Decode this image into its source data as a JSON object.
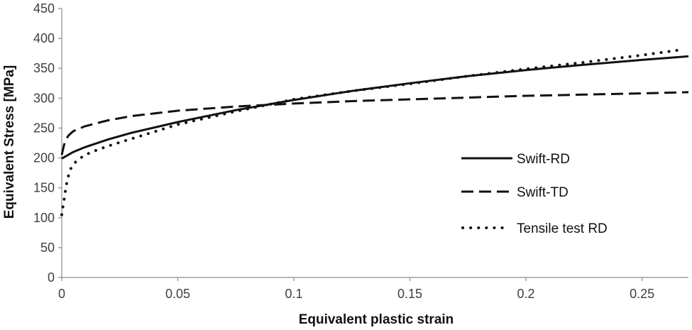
{
  "chart_data": {
    "type": "line",
    "title": "",
    "xlabel": "Equivalent plastic strain",
    "ylabel": "Equivalent Stress [MPa]",
    "xlim": [
      0,
      0.27
    ],
    "ylim": [
      0,
      450
    ],
    "x_ticks": [
      0,
      0.05,
      0.1,
      0.15,
      0.2,
      0.25
    ],
    "x_tick_labels": [
      "0",
      "0.05",
      "0.1",
      "0.15",
      "0.2",
      "0.25"
    ],
    "y_ticks": [
      0,
      50,
      100,
      150,
      200,
      250,
      300,
      350,
      400,
      450
    ],
    "y_tick_labels": [
      "0",
      "50",
      "100",
      "150",
      "200",
      "250",
      "300",
      "350",
      "400",
      "450"
    ],
    "grid": false,
    "legend_position": "right",
    "series": [
      {
        "name": "Swift-RD",
        "style": "solid",
        "color": "#111111",
        "x": [
          0,
          0.005,
          0.01,
          0.02,
          0.03,
          0.05,
          0.075,
          0.1,
          0.125,
          0.15,
          0.175,
          0.2,
          0.225,
          0.25,
          0.27
        ],
        "y": [
          199,
          210,
          218,
          231,
          242,
          260,
          280,
          297,
          312,
          325,
          337,
          347,
          356,
          364,
          370
        ]
      },
      {
        "name": "Swift-TD",
        "style": "dashed",
        "color": "#111111",
        "x": [
          0,
          0.001,
          0.002,
          0.003,
          0.005,
          0.01,
          0.02,
          0.03,
          0.05,
          0.075,
          0.1,
          0.125,
          0.15,
          0.175,
          0.2,
          0.225,
          0.25,
          0.27
        ],
        "y": [
          205,
          222,
          232,
          238,
          245,
          253,
          263,
          270,
          279,
          286,
          291,
          295,
          298,
          301,
          304,
          306,
          308,
          310
        ]
      },
      {
        "name": "Tensile test RD",
        "style": "dotted",
        "color": "#111111",
        "x": [
          0,
          0.0005,
          0.001,
          0.0015,
          0.002,
          0.003,
          0.004,
          0.005,
          0.0075,
          0.01,
          0.015,
          0.02,
          0.03,
          0.05,
          0.075,
          0.1,
          0.125,
          0.15,
          0.175,
          0.2,
          0.225,
          0.25,
          0.265
        ],
        "y": [
          105,
          118,
          130,
          143,
          155,
          172,
          183,
          190,
          198,
          205,
          213,
          220,
          232,
          256,
          278,
          298,
          312,
          324,
          337,
          349,
          360,
          372,
          380
        ]
      }
    ]
  }
}
